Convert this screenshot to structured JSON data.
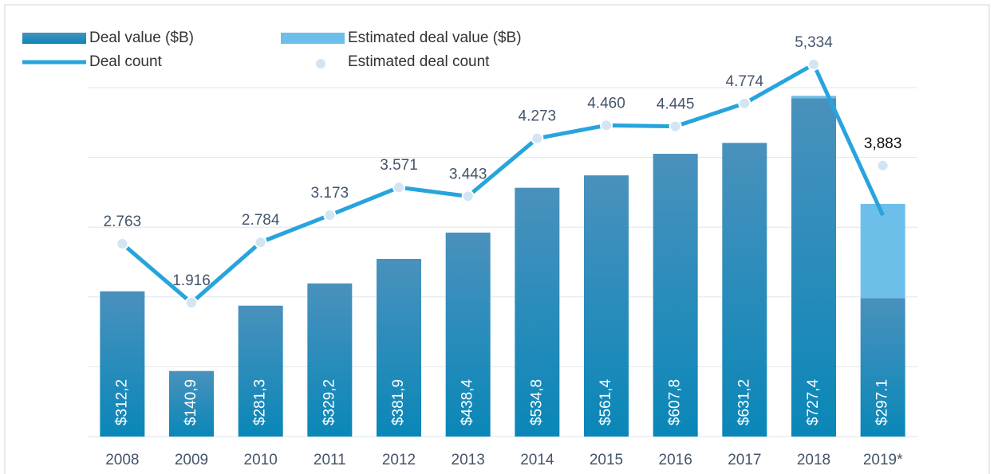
{
  "chart_data": {
    "type": "bar",
    "categories": [
      "2008",
      "2009",
      "2010",
      "2011",
      "2012",
      "2013",
      "2014",
      "2015",
      "2016",
      "2017",
      "2018",
      "2019*"
    ],
    "series": [
      {
        "name": "Deal value ($B)",
        "color": "#1a86b6",
        "values": [
          312.2,
          140.9,
          281.3,
          329.2,
          381.9,
          438.4,
          534.8,
          561.4,
          607.8,
          631.2,
          727.4,
          297.1
        ],
        "value_labels": [
          "$312,2",
          "$140,9",
          "$281,3",
          "$329,2",
          "$381,9",
          "$438,4",
          "$534,8",
          "$561,4",
          "$607,8",
          "$631,2",
          "$727,4",
          "$297.1"
        ]
      },
      {
        "name": "Estimated deal value ($B)",
        "color": "#6cbfe9",
        "values": [
          null,
          null,
          null,
          null,
          null,
          null,
          null,
          null,
          null,
          null,
          5,
          203
        ]
      },
      {
        "name": "Deal count",
        "type": "line",
        "axis": "y2",
        "color": "#27a4dc",
        "values": [
          2763,
          1916,
          2784,
          3173,
          3571,
          3443,
          4273,
          4460,
          4445,
          4774,
          5334,
          3170
        ],
        "value_labels": [
          "2.763",
          "1.916",
          "2.784",
          "3.173",
          "3.571",
          "3.443",
          "4.273",
          "4.460",
          "4.445",
          "4.774",
          "5,334",
          null
        ]
      },
      {
        "name": "Estimated deal count",
        "type": "scatter",
        "axis": "y2",
        "color": "#d3e4f3",
        "values": [
          null,
          null,
          null,
          null,
          null,
          null,
          null,
          null,
          null,
          null,
          null,
          3883
        ],
        "value_labels": [
          null,
          null,
          null,
          null,
          null,
          null,
          null,
          null,
          null,
          null,
          null,
          "3,883"
        ]
      }
    ],
    "ylim": [
      0,
      750
    ],
    "yticks": [
      0,
      150,
      300,
      450,
      600,
      750
    ],
    "y2lim": [
      0,
      5000
    ],
    "grid": true,
    "legend": "top-left"
  }
}
